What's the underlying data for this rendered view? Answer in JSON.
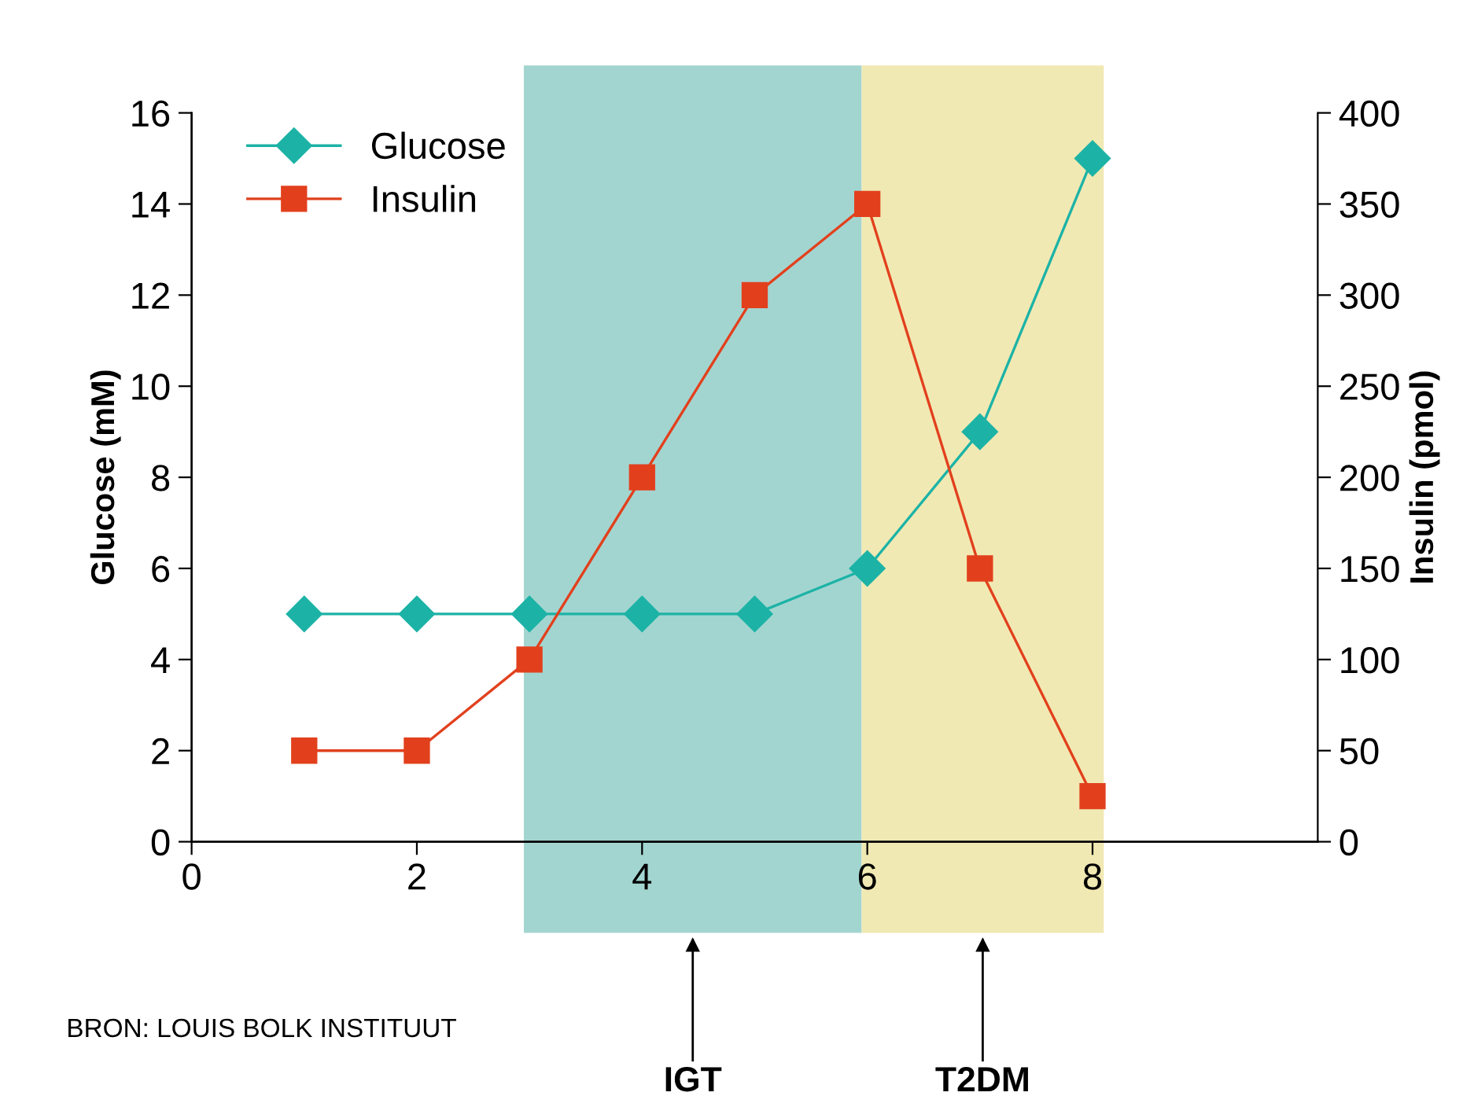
{
  "chart_data": {
    "type": "line",
    "x": [
      1,
      2,
      3,
      4,
      5,
      6,
      7,
      8
    ],
    "series": [
      {
        "name": "Glucose",
        "color": "#1cb3a6",
        "marker": "diamond",
        "values": [
          5,
          5,
          5,
          5,
          5,
          6,
          9,
          15
        ]
      },
      {
        "name": "Insulin",
        "color": "#e2401d",
        "marker": "square",
        "axis": "y2",
        "values": [
          50,
          50,
          100,
          200,
          300,
          350,
          150,
          25
        ]
      }
    ],
    "ylabel": "Glucose (mM)",
    "y2label": "Insulin (pmol)",
    "xlim": [
      0,
      10
    ],
    "xticks": [
      0,
      2,
      4,
      6,
      8
    ],
    "ylim": [
      0,
      16
    ],
    "yticks": [
      0,
      2,
      4,
      6,
      8,
      10,
      12,
      14,
      16
    ],
    "y2lim": [
      0,
      400
    ],
    "y2ticks": [
      0,
      50,
      100,
      150,
      200,
      250,
      300,
      350,
      400
    ],
    "bands": [
      {
        "axis": "x",
        "from": 2.95,
        "to": 5.95,
        "color": "#a3d5d0",
        "label": "IGT"
      },
      {
        "axis": "x",
        "from": 5.95,
        "to": 8.1,
        "color": "#f1e9b3",
        "label": "T2DM"
      }
    ],
    "annotations": [
      "BRON: LOUIS BOLK INSTITUUT"
    ],
    "legend": "top left",
    "grid": false,
    "line_style": "solid"
  }
}
